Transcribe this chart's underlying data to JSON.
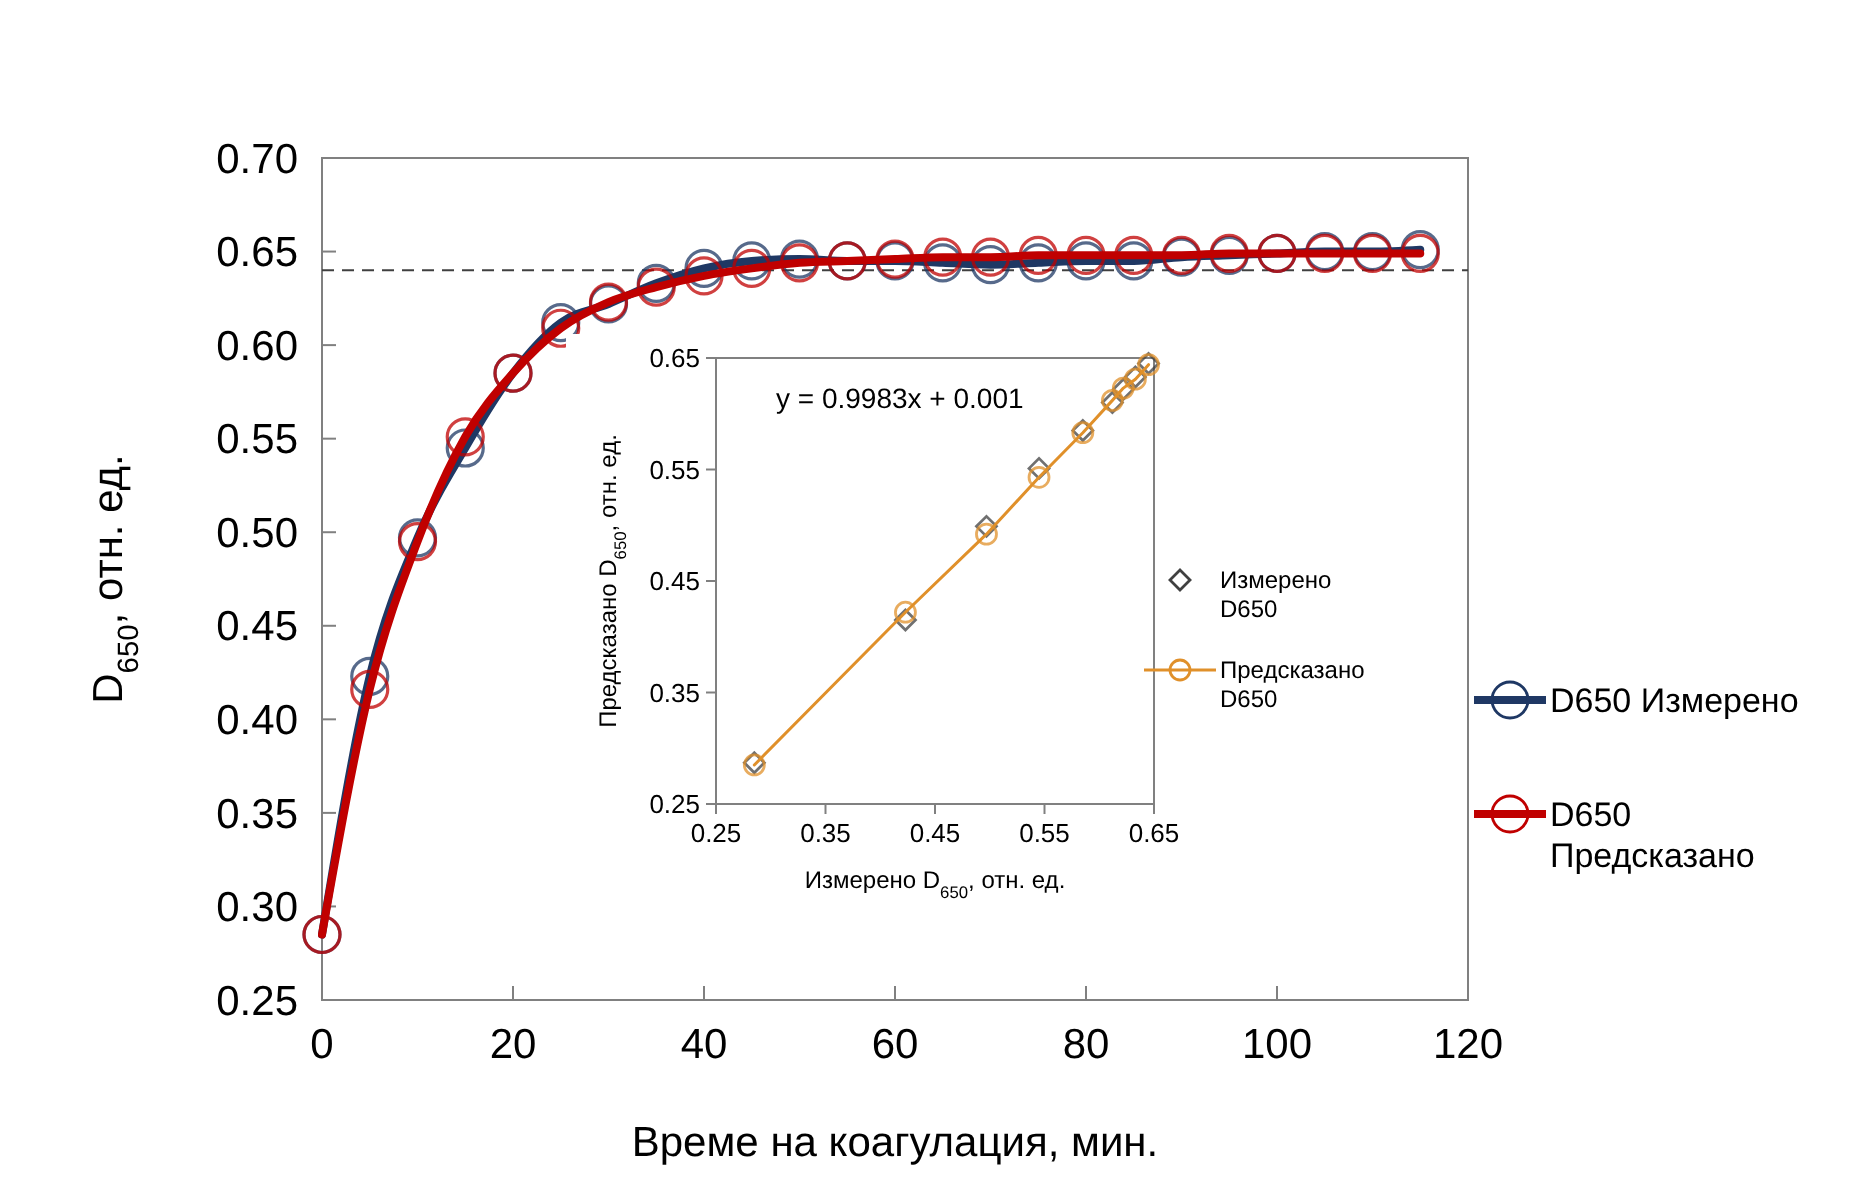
{
  "chart_data": [
    {
      "type": "line",
      "xlabel": "Време на коагулация, мин.",
      "ylabel": "D$_{650}$, отн. ед.",
      "x": [
        0,
        5,
        10,
        15,
        20,
        25,
        30,
        35,
        40,
        45,
        50,
        55,
        60,
        65,
        70,
        75,
        80,
        85,
        90,
        95,
        100,
        105,
        110,
        115
      ],
      "xlim": [
        0,
        120
      ],
      "xticks": [
        0,
        20,
        40,
        60,
        80,
        100,
        120
      ],
      "ylim": [
        0.25,
        0.7
      ],
      "yticks": [
        0.25,
        {
          "value": 0.3,
          "label": "0.30"
        },
        0.35,
        {
          "value": 0.4,
          "label": "0.40"
        },
        0.45,
        {
          "value": 0.5,
          "label": "0.50"
        },
        0.55,
        {
          "value": 0.6,
          "label": "0.60"
        },
        0.65,
        {
          "value": 0.7,
          "label": "0.70"
        }
      ],
      "legend": "right",
      "marker": "circle",
      "line_style": "solid",
      "grid": false,
      "ref_lines": [
        {
          "axis": "y",
          "value": 0.64,
          "color": "#404040",
          "line_style": "dashed"
        }
      ],
      "series": [
        {
          "name": "D650 Измерено",
          "color": "#1f3864",
          "values": [
            0.285,
            0.423,
            0.497,
            0.545,
            0.585,
            0.612,
            0.622,
            0.633,
            0.641,
            0.645,
            0.646,
            0.645,
            0.645,
            0.644,
            0.643,
            0.644,
            0.645,
            0.645,
            0.647,
            0.648,
            0.649,
            0.65,
            0.65,
            0.651
          ]
        },
        {
          "name": "D650 Предсказано",
          "color": "#c00000",
          "values": [
            0.285,
            0.416,
            0.495,
            0.551,
            0.585,
            0.609,
            0.623,
            0.631,
            0.637,
            0.641,
            0.644,
            0.645,
            0.646,
            0.647,
            0.647,
            0.648,
            0.648,
            0.648,
            0.648,
            0.649,
            0.649,
            0.649,
            0.649,
            0.649
          ]
        }
      ]
    },
    {
      "type": "scatter",
      "xlabel": "Измерено D$_{650}$, отн. ед.",
      "ylabel": "Предсказано D$_{650}$, отн. ед.",
      "annotations": [
        "y = 0.9983x + 0.001"
      ],
      "x": [
        0.285,
        0.423,
        0.497,
        0.545,
        0.585,
        0.612,
        0.622,
        0.633,
        0.645
      ],
      "xlim": [
        0.25,
        0.65
      ],
      "xticks": [
        0.25,
        0.35,
        0.45,
        0.55,
        0.65
      ],
      "ylim": [
        0.25,
        0.65
      ],
      "yticks": [
        0.25,
        0.35,
        0.45,
        0.55,
        0.65
      ],
      "legend": "right",
      "grid": false,
      "series": [
        {
          "name": "Измерено D650",
          "marker": "diamond",
          "color": "#404040",
          "values": [
            0.287,
            0.415,
            0.499,
            0.551,
            0.585,
            0.61,
            0.622,
            0.633,
            0.645
          ]
        },
        {
          "name": "Предсказано D650",
          "type": "line",
          "marker": "circle",
          "color": "#e0902a",
          "values": [
            0.285,
            0.422,
            0.492,
            0.543,
            0.583,
            0.612,
            0.623,
            0.631,
            0.644
          ]
        }
      ]
    }
  ]
}
